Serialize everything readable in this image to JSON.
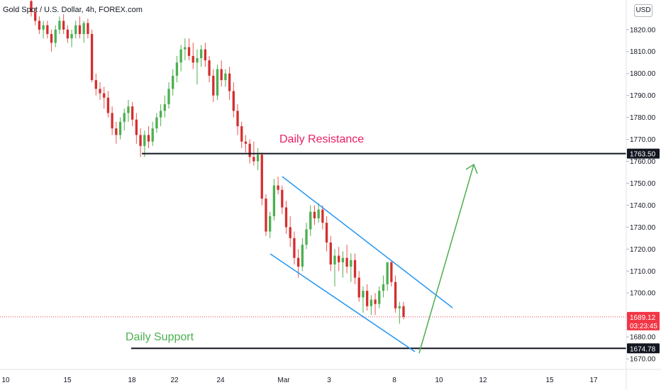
{
  "chart_data": {
    "type": "candlestick",
    "title": "Gold Spot / U.S. Dollar, 4h, FOREX.com",
    "currency_button": "USD",
    "colors": {
      "up": "#26a69a",
      "up_body": "#4caf50",
      "down": "#ef5350",
      "down_body": "#d32f2f",
      "line_black": "#131722",
      "channel": "#2196f3",
      "arrow": "#4caf50",
      "resistance_label": "#e91e63",
      "support_label": "#4caf50",
      "price_tag": "#f23645"
    },
    "x_axis": {
      "ticks": [
        "10",
        "15",
        "18",
        "22",
        "24",
        "Mar",
        "3",
        "8",
        "10",
        "12",
        "15",
        "17"
      ]
    },
    "y_axis": {
      "ylim": [
        1665.5,
        1833.5
      ],
      "ticks": [
        1670.0,
        1680.0,
        1690.0,
        1700.0,
        1710.0,
        1720.0,
        1730.0,
        1740.0,
        1750.0,
        1760.0,
        1770.0,
        1780.0,
        1790.0,
        1800.0,
        1810.0,
        1820.0
      ],
      "tick_labels": [
        "1670.00",
        "1680.00",
        "1690.00",
        "1700.00",
        "1710.00",
        "1720.00",
        "1730.00",
        "1740.00",
        "1750.00",
        "1760.00",
        "1770.00",
        "1780.00",
        "1790.00",
        "1800.00",
        "1810.00",
        "1820.00"
      ]
    },
    "candles": [
      {
        "o": 1833,
        "h": 1834,
        "l": 1826,
        "c": 1828
      },
      {
        "o": 1828,
        "h": 1830,
        "l": 1822,
        "c": 1824
      },
      {
        "o": 1824,
        "h": 1826,
        "l": 1818,
        "c": 1820
      },
      {
        "o": 1820,
        "h": 1824,
        "l": 1816,
        "c": 1822
      },
      {
        "o": 1822,
        "h": 1824,
        "l": 1816,
        "c": 1818
      },
      {
        "o": 1818,
        "h": 1820,
        "l": 1810,
        "c": 1814
      },
      {
        "o": 1814,
        "h": 1822,
        "l": 1812,
        "c": 1820
      },
      {
        "o": 1820,
        "h": 1826,
        "l": 1818,
        "c": 1824
      },
      {
        "o": 1824,
        "h": 1827,
        "l": 1818,
        "c": 1820
      },
      {
        "o": 1820,
        "h": 1822,
        "l": 1814,
        "c": 1816
      },
      {
        "o": 1816,
        "h": 1820,
        "l": 1812,
        "c": 1818
      },
      {
        "o": 1818,
        "h": 1824,
        "l": 1816,
        "c": 1822
      },
      {
        "o": 1822,
        "h": 1826,
        "l": 1816,
        "c": 1818
      },
      {
        "o": 1818,
        "h": 1824,
        "l": 1814,
        "c": 1823
      },
      {
        "o": 1823,
        "h": 1825,
        "l": 1816,
        "c": 1818
      },
      {
        "o": 1818,
        "h": 1820,
        "l": 1796,
        "c": 1797
      },
      {
        "o": 1797,
        "h": 1800,
        "l": 1790,
        "c": 1793
      },
      {
        "o": 1793,
        "h": 1796,
        "l": 1788,
        "c": 1791
      },
      {
        "o": 1791,
        "h": 1794,
        "l": 1784,
        "c": 1789
      },
      {
        "o": 1789,
        "h": 1792,
        "l": 1780,
        "c": 1782
      },
      {
        "o": 1782,
        "h": 1785,
        "l": 1772,
        "c": 1775
      },
      {
        "o": 1775,
        "h": 1778,
        "l": 1768,
        "c": 1772
      },
      {
        "o": 1772,
        "h": 1780,
        "l": 1770,
        "c": 1778
      },
      {
        "o": 1778,
        "h": 1784,
        "l": 1774,
        "c": 1782
      },
      {
        "o": 1782,
        "h": 1788,
        "l": 1778,
        "c": 1785
      },
      {
        "o": 1785,
        "h": 1787,
        "l": 1776,
        "c": 1779
      },
      {
        "o": 1779,
        "h": 1782,
        "l": 1768,
        "c": 1772
      },
      {
        "o": 1772,
        "h": 1775,
        "l": 1762,
        "c": 1767
      },
      {
        "o": 1767,
        "h": 1774,
        "l": 1762,
        "c": 1772
      },
      {
        "o": 1772,
        "h": 1776,
        "l": 1766,
        "c": 1769
      },
      {
        "o": 1769,
        "h": 1778,
        "l": 1767,
        "c": 1775
      },
      {
        "o": 1775,
        "h": 1782,
        "l": 1773,
        "c": 1780
      },
      {
        "o": 1780,
        "h": 1786,
        "l": 1776,
        "c": 1783
      },
      {
        "o": 1783,
        "h": 1790,
        "l": 1780,
        "c": 1786
      },
      {
        "o": 1786,
        "h": 1796,
        "l": 1784,
        "c": 1793
      },
      {
        "o": 1793,
        "h": 1802,
        "l": 1790,
        "c": 1799
      },
      {
        "o": 1799,
        "h": 1808,
        "l": 1796,
        "c": 1805
      },
      {
        "o": 1805,
        "h": 1813,
        "l": 1801,
        "c": 1811
      },
      {
        "o": 1811,
        "h": 1816,
        "l": 1806,
        "c": 1812
      },
      {
        "o": 1812,
        "h": 1816,
        "l": 1806,
        "c": 1808
      },
      {
        "o": 1808,
        "h": 1814,
        "l": 1802,
        "c": 1805
      },
      {
        "o": 1805,
        "h": 1811,
        "l": 1795,
        "c": 1807
      },
      {
        "o": 1807,
        "h": 1813,
        "l": 1803,
        "c": 1811
      },
      {
        "o": 1811,
        "h": 1814,
        "l": 1803,
        "c": 1806
      },
      {
        "o": 1806,
        "h": 1808,
        "l": 1796,
        "c": 1799
      },
      {
        "o": 1799,
        "h": 1802,
        "l": 1787,
        "c": 1790
      },
      {
        "o": 1790,
        "h": 1804,
        "l": 1788,
        "c": 1802
      },
      {
        "o": 1802,
        "h": 1806,
        "l": 1794,
        "c": 1797
      },
      {
        "o": 1797,
        "h": 1802,
        "l": 1794,
        "c": 1800
      },
      {
        "o": 1800,
        "h": 1803,
        "l": 1788,
        "c": 1792
      },
      {
        "o": 1792,
        "h": 1796,
        "l": 1780,
        "c": 1783
      },
      {
        "o": 1783,
        "h": 1786,
        "l": 1772,
        "c": 1776
      },
      {
        "o": 1776,
        "h": 1778,
        "l": 1766,
        "c": 1769
      },
      {
        "o": 1769,
        "h": 1772,
        "l": 1764,
        "c": 1768
      },
      {
        "o": 1768,
        "h": 1770,
        "l": 1759,
        "c": 1762
      },
      {
        "o": 1762,
        "h": 1769,
        "l": 1758,
        "c": 1760
      },
      {
        "o": 1760,
        "h": 1766,
        "l": 1756,
        "c": 1763
      },
      {
        "o": 1763,
        "h": 1764,
        "l": 1740,
        "c": 1743
      },
      {
        "o": 1743,
        "h": 1745,
        "l": 1726,
        "c": 1728
      },
      {
        "o": 1728,
        "h": 1737,
        "l": 1725,
        "c": 1735
      },
      {
        "o": 1735,
        "h": 1752,
        "l": 1733,
        "c": 1749
      },
      {
        "o": 1749,
        "h": 1753,
        "l": 1745,
        "c": 1747
      },
      {
        "o": 1747,
        "h": 1749,
        "l": 1736,
        "c": 1739
      },
      {
        "o": 1739,
        "h": 1742,
        "l": 1727,
        "c": 1730
      },
      {
        "o": 1730,
        "h": 1735,
        "l": 1721,
        "c": 1725
      },
      {
        "o": 1725,
        "h": 1728,
        "l": 1713,
        "c": 1716
      },
      {
        "o": 1716,
        "h": 1720,
        "l": 1707,
        "c": 1712
      },
      {
        "o": 1712,
        "h": 1725,
        "l": 1710,
        "c": 1722
      },
      {
        "o": 1722,
        "h": 1732,
        "l": 1720,
        "c": 1729
      },
      {
        "o": 1729,
        "h": 1740,
        "l": 1726,
        "c": 1737
      },
      {
        "o": 1737,
        "h": 1740,
        "l": 1731,
        "c": 1734
      },
      {
        "o": 1734,
        "h": 1741,
        "l": 1732,
        "c": 1738
      },
      {
        "o": 1738,
        "h": 1740,
        "l": 1729,
        "c": 1732
      },
      {
        "o": 1732,
        "h": 1735,
        "l": 1719,
        "c": 1723
      },
      {
        "o": 1723,
        "h": 1726,
        "l": 1710,
        "c": 1713
      },
      {
        "o": 1713,
        "h": 1720,
        "l": 1703,
        "c": 1717
      },
      {
        "o": 1717,
        "h": 1721,
        "l": 1710,
        "c": 1714
      },
      {
        "o": 1714,
        "h": 1719,
        "l": 1707,
        "c": 1716
      },
      {
        "o": 1716,
        "h": 1722,
        "l": 1709,
        "c": 1712
      },
      {
        "o": 1712,
        "h": 1718,
        "l": 1705,
        "c": 1715
      },
      {
        "o": 1715,
        "h": 1718,
        "l": 1704,
        "c": 1707
      },
      {
        "o": 1707,
        "h": 1710,
        "l": 1696,
        "c": 1698
      },
      {
        "o": 1698,
        "h": 1703,
        "l": 1691,
        "c": 1701
      },
      {
        "o": 1701,
        "h": 1704,
        "l": 1692,
        "c": 1694
      },
      {
        "o": 1694,
        "h": 1699,
        "l": 1690,
        "c": 1697
      },
      {
        "o": 1697,
        "h": 1700,
        "l": 1690,
        "c": 1695
      },
      {
        "o": 1695,
        "h": 1703,
        "l": 1693,
        "c": 1701
      },
      {
        "o": 1701,
        "h": 1708,
        "l": 1698,
        "c": 1704
      },
      {
        "o": 1704,
        "h": 1713,
        "l": 1701,
        "c": 1714
      },
      {
        "o": 1714,
        "h": 1715,
        "l": 1703,
        "c": 1705
      },
      {
        "o": 1705,
        "h": 1708,
        "l": 1691,
        "c": 1693
      },
      {
        "o": 1693,
        "h": 1696,
        "l": 1686,
        "c": 1694
      },
      {
        "o": 1694,
        "h": 1696,
        "l": 1688,
        "c": 1689.12
      }
    ],
    "annotations": {
      "resistance_label": "Daily Resistance",
      "support_label": "Daily Support",
      "resistance_level": 1763.5,
      "support_level": 1674.78,
      "current_price": 1689.12,
      "countdown": "03:23:45",
      "resistance_tag": "1763.50",
      "support_tag": "1674.78",
      "price_tag": "1689.12"
    }
  }
}
